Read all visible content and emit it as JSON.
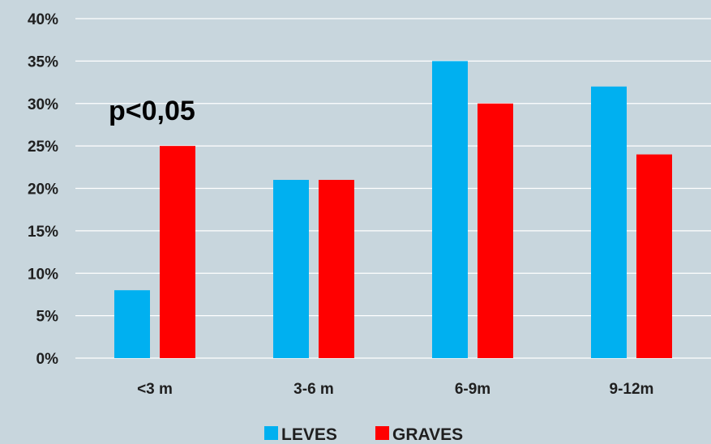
{
  "chart_data": {
    "type": "bar",
    "categories": [
      "<3 m",
      "3-6 m",
      "6-9m",
      "9-12m"
    ],
    "series": [
      {
        "name": "LEVES",
        "color": "#00b0f0",
        "values": [
          8,
          21,
          35,
          32
        ]
      },
      {
        "name": "GRAVES",
        "color": "#ff0000",
        "values": [
          25,
          21,
          30,
          24
        ]
      }
    ],
    "ylim": [
      0,
      40
    ],
    "yticks": [
      "0%",
      "5%",
      "10%",
      "15%",
      "20%",
      "25%",
      "30%",
      "35%",
      "40%"
    ],
    "ytick_values": [
      0,
      5,
      10,
      15,
      20,
      25,
      30,
      35,
      40
    ],
    "title": "",
    "xlabel": "",
    "ylabel": "",
    "annotation": "p<0,05",
    "grid": true,
    "legend_position": "bottom"
  }
}
